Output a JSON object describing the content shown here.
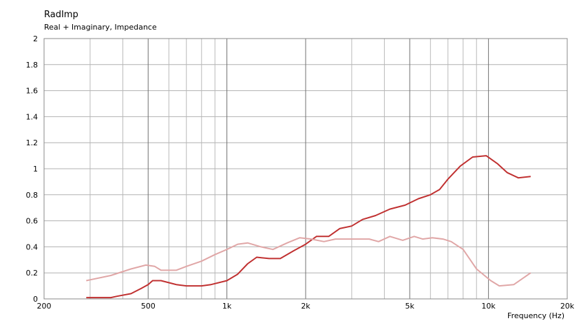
{
  "chart_data": {
    "type": "line",
    "title": "RadImp",
    "subtitle": "Real + Imaginary, Impedance",
    "xlabel": "Frequency  (Hz)",
    "ylabel": "",
    "xscale": "log",
    "xlim": [
      200,
      20000
    ],
    "ylim": [
      0,
      2
    ],
    "grid": true,
    "legend": "none",
    "y_ticks": [
      {
        "v": 0,
        "label": "0"
      },
      {
        "v": 0.2,
        "label": "0.2"
      },
      {
        "v": 0.4,
        "label": "0.4"
      },
      {
        "v": 0.6,
        "label": "0.6"
      },
      {
        "v": 0.8,
        "label": "0.8"
      },
      {
        "v": 1,
        "label": "1"
      },
      {
        "v": 1.2,
        "label": "1.2"
      },
      {
        "v": 1.4,
        "label": "1.4"
      },
      {
        "v": 1.6,
        "label": "1.6"
      },
      {
        "v": 1.8,
        "label": "1.8"
      },
      {
        "v": 2,
        "label": "2"
      }
    ],
    "x_ticks": [
      {
        "v": 200,
        "label": "200"
      },
      {
        "v": 500,
        "label": "500"
      },
      {
        "v": 1000,
        "label": "1k"
      },
      {
        "v": 2000,
        "label": "2k"
      },
      {
        "v": 5000,
        "label": "5k"
      },
      {
        "v": 10000,
        "label": "10k"
      },
      {
        "v": 20000,
        "label": "20k"
      }
    ],
    "x_minor": [
      300,
      400,
      600,
      700,
      800,
      900,
      3000,
      4000,
      6000,
      7000,
      8000,
      9000
    ],
    "series": [
      {
        "color": "#c03030",
        "x": [
          290,
          360,
          380,
          430,
          470,
          500,
          520,
          560,
          640,
          700,
          800,
          870,
          1000,
          1100,
          1200,
          1300,
          1450,
          1600,
          1800,
          2000,
          2200,
          2450,
          2700,
          3000,
          3300,
          3700,
          4200,
          4800,
          5400,
          6000,
          6500,
          7000,
          7800,
          8700,
          9800,
          10800,
          11800,
          13000,
          14500
        ],
        "y": [
          0.01,
          0.01,
          0.02,
          0.04,
          0.08,
          0.11,
          0.14,
          0.14,
          0.11,
          0.1,
          0.1,
          0.11,
          0.14,
          0.19,
          0.27,
          0.32,
          0.31,
          0.31,
          0.37,
          0.42,
          0.48,
          0.48,
          0.54,
          0.56,
          0.61,
          0.64,
          0.69,
          0.72,
          0.77,
          0.8,
          0.84,
          0.92,
          1.02,
          1.09,
          1.1,
          1.04,
          0.97,
          0.93,
          0.94
        ]
      },
      {
        "color": "#e0a6a6",
        "x": [
          290,
          360,
          430,
          490,
          530,
          560,
          640,
          700,
          800,
          900,
          1000,
          1100,
          1200,
          1350,
          1500,
          1700,
          1900,
          2100,
          2350,
          2600,
          3000,
          3500,
          3800,
          4200,
          4700,
          5200,
          5600,
          6100,
          6700,
          7200,
          8000,
          9000,
          10200,
          11000,
          12500,
          14500
        ],
        "y": [
          0.14,
          0.18,
          0.23,
          0.26,
          0.25,
          0.22,
          0.22,
          0.25,
          0.29,
          0.34,
          0.38,
          0.42,
          0.43,
          0.4,
          0.38,
          0.43,
          0.47,
          0.46,
          0.44,
          0.46,
          0.46,
          0.46,
          0.44,
          0.48,
          0.45,
          0.48,
          0.46,
          0.47,
          0.46,
          0.44,
          0.38,
          0.23,
          0.14,
          0.1,
          0.11,
          0.2
        ]
      }
    ]
  }
}
